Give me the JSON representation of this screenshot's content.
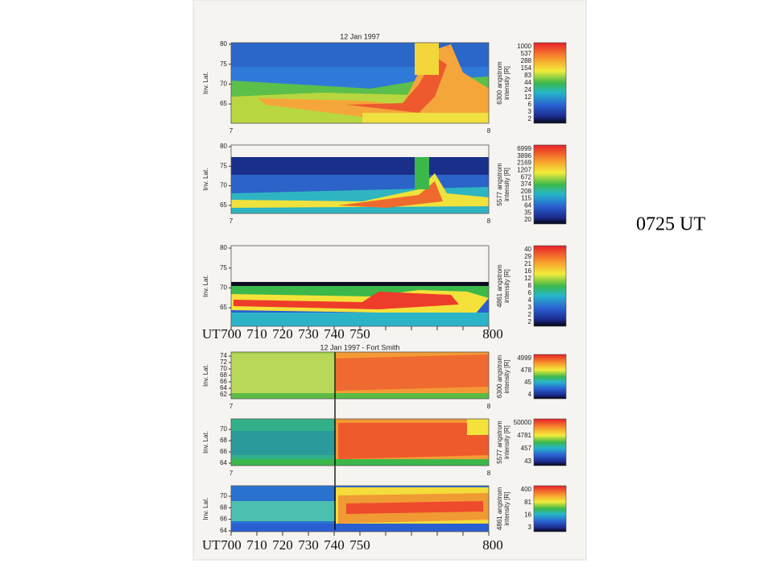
{
  "slide_label": "0725 UT",
  "figures": [
    {
      "title": "12 Jan 1997",
      "panels": [
        {
          "y_label": "Inv. Lat.",
          "y_ticks": [
            "80",
            "75",
            "70",
            "65"
          ],
          "x_ticks": [
            "7",
            "8"
          ],
          "colorbar_label": [
            "6300 angstrom",
            "intensity [R]"
          ],
          "colorbar_ticks": [
            "1000",
            "537",
            "288",
            "154",
            "83",
            "44",
            "24",
            "12",
            "6",
            "3",
            "2"
          ]
        },
        {
          "y_label": "Inv. Lat.",
          "y_ticks": [
            "80",
            "75",
            "70",
            "65"
          ],
          "x_ticks": [
            "7",
            "8"
          ],
          "colorbar_label": [
            "5577 angstrom",
            "intensity [R]"
          ],
          "colorbar_ticks": [
            "6999",
            "3896",
            "2169",
            "1207",
            "672",
            "374",
            "208",
            "115",
            "64",
            "35",
            "20"
          ]
        },
        {
          "y_label": "Inv. Lat.",
          "y_ticks": [
            "80",
            "75",
            "70",
            "65"
          ],
          "colorbar_label": [
            "4861 angstrom",
            "intensity [R]"
          ],
          "colorbar_ticks": [
            "40",
            "29",
            "21",
            "16",
            "12",
            "8",
            "6",
            "4",
            "3",
            "2",
            "2"
          ]
        }
      ],
      "ut_axis": {
        "label": "UT",
        "ticks": [
          "700",
          "710",
          "720",
          "730",
          "740",
          "750",
          "800"
        ]
      }
    },
    {
      "title": "12 Jan 1997  -  Fort Smith",
      "panels": [
        {
          "y_label": "Inv. Lat.",
          "y_ticks": [
            "74",
            "72",
            "70",
            "68",
            "66",
            "64",
            "62"
          ],
          "x_ticks": [
            "7",
            "8"
          ],
          "colorbar_label": [
            "6300 angstrom",
            "intensity [R]"
          ],
          "colorbar_ticks": [
            "4999",
            "478",
            "45",
            "4"
          ]
        },
        {
          "y_label": "Inv. Lat.",
          "y_ticks": [
            "70",
            "68",
            "66",
            "64"
          ],
          "x_ticks": [
            "7",
            "8"
          ],
          "colorbar_label": [
            "5577 angstrom",
            "intensity [R]"
          ],
          "colorbar_ticks": [
            "50000",
            "4781",
            "457",
            "43"
          ]
        },
        {
          "y_label": "Inv. Lat.",
          "y_ticks": [
            "70",
            "68",
            "66",
            "64"
          ],
          "colorbar_label": [
            "4861 angstrom",
            "intensity [R]"
          ],
          "colorbar_ticks": [
            "400",
            "81",
            "16",
            "3"
          ]
        }
      ],
      "ut_axis": {
        "label": "UT",
        "ticks": [
          "700",
          "710",
          "720",
          "730",
          "740",
          "750",
          "800"
        ]
      }
    }
  ]
}
